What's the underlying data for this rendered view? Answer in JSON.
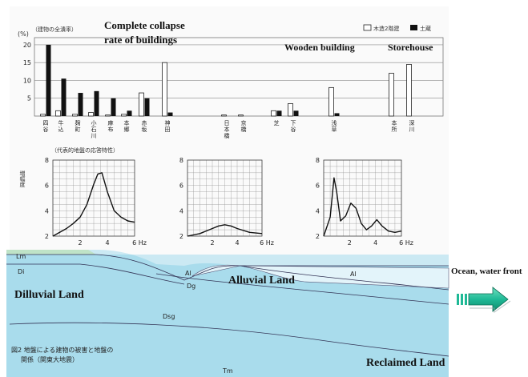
{
  "overlay_labels": {
    "collapse_line1": "Complete collapse",
    "collapse_line2": "rate of  buildings",
    "wooden": "Wooden building",
    "storehouse": "Storehouse",
    "ocean": "Ocean, water front",
    "dilluvial": "Dilluvial Land",
    "alluvial": "Alluvial Land",
    "reclaimed": "Reclaimed Land"
  },
  "figure_text": {
    "y_unit": "(%)",
    "y_caption": "（建物の全潰率）",
    "legend_wooden": "木造2階建",
    "legend_storehouse": "土蔵",
    "response_caption": "（代表的地盤の応答特性）",
    "response_ylabel": "増幅度",
    "caption_line1": "図2 地盤による建物の被害と地盤の",
    "caption_line2": "関係（関東大地震）"
  },
  "chart_data": [
    {
      "type": "bar",
      "title": "Complete collapse rate of buildings",
      "ylabel": "(%)",
      "ylim": [
        0,
        22
      ],
      "yticks": [
        5,
        10,
        15,
        20
      ],
      "categories": [
        "四谷",
        "牛込",
        "麹町",
        "小石川",
        "麻布",
        "本郷",
        "赤坂",
        "神田",
        "日本橋",
        "京橋",
        "芝",
        "下谷",
        "浅草",
        "本所",
        "深川"
      ],
      "series": [
        {
          "name": "Wooden building",
          "values": [
            0.5,
            1.5,
            0.5,
            1.0,
            0.3,
            0.5,
            6.5,
            15.0,
            0.3,
            0.3,
            1.5,
            3.5,
            8.0,
            12.0,
            14.5
          ]
        },
        {
          "name": "Storehouse",
          "values": [
            20.0,
            10.5,
            6.5,
            7.0,
            5.0,
            1.5,
            5.0,
            1.0,
            0.0,
            0.0,
            1.5,
            1.5,
            0.8,
            0.0,
            0.0
          ]
        }
      ]
    },
    {
      "type": "line",
      "ylabel": "増幅度",
      "xlim": [
        0,
        6
      ],
      "ylim": [
        2,
        8
      ],
      "xticks": [
        "2",
        "4",
        "6 Hz"
      ],
      "yticks": [
        "2",
        "4",
        "6",
        "8"
      ],
      "x": [
        0,
        0.5,
        1,
        1.5,
        2,
        2.5,
        3,
        3.3,
        3.6,
        4,
        4.5,
        5,
        5.5,
        6
      ],
      "series": [
        {
          "values": [
            2.0,
            2.3,
            2.6,
            3.0,
            3.5,
            4.5,
            6.1,
            6.9,
            7.0,
            5.5,
            4.0,
            3.5,
            3.2,
            3.1
          ]
        }
      ]
    },
    {
      "type": "line",
      "xlim": [
        0,
        6
      ],
      "ylim": [
        2,
        8
      ],
      "xticks": [
        "2",
        "4",
        "6 Hz"
      ],
      "yticks": [
        "2",
        "4",
        "6",
        "8"
      ],
      "x": [
        0,
        1,
        2,
        2.5,
        3,
        3.5,
        4,
        5,
        6
      ],
      "series": [
        {
          "values": [
            2.0,
            2.2,
            2.6,
            2.8,
            2.9,
            2.8,
            2.6,
            2.3,
            2.2
          ]
        }
      ]
    },
    {
      "type": "line",
      "xlim": [
        0,
        6
      ],
      "ylim": [
        2,
        8
      ],
      "xticks": [
        "2",
        "4",
        "6 Hz"
      ],
      "yticks": [
        "2",
        "4",
        "6",
        "8"
      ],
      "x": [
        0,
        0.5,
        0.8,
        1.0,
        1.3,
        1.7,
        2.1,
        2.5,
        2.9,
        3.3,
        3.7,
        4.1,
        4.5,
        5,
        5.5,
        6
      ],
      "series": [
        {
          "values": [
            2.0,
            3.5,
            6.6,
            5.5,
            3.2,
            3.6,
            4.6,
            4.2,
            3.0,
            2.5,
            2.8,
            3.3,
            2.8,
            2.4,
            2.3,
            2.4
          ]
        }
      ]
    }
  ],
  "cross_section": {
    "layers": [
      "Lm",
      "Di",
      "Al",
      "Dg",
      "Dsg",
      "Al",
      "Tm"
    ]
  },
  "colors": {
    "water_blue": "#a9dcec",
    "light_blue": "#cbe9f3",
    "terrace_green": "#bfe3c7",
    "arrow_teal": "#1fb996"
  }
}
